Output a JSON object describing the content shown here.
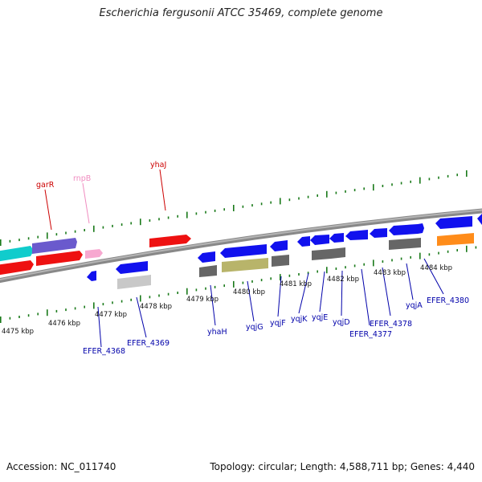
{
  "title": "Escherichia fergusonii ATCC 35469, complete genome",
  "accession": "Accession: NC_011740",
  "topology": "Topology: circular; Length: 4,588,711 bp; Genes: 4,440",
  "colors": {
    "red": "#ee1111",
    "blue": "#1111ee",
    "teal": "#11cccc",
    "purple": "#6a5acd",
    "pink": "#f7a8d0",
    "gray": "#666666",
    "lightgray": "#c8c8c8",
    "olive": "#b8b46a",
    "orange": "#ff8c1a",
    "backbone": "#888888",
    "tick_green": "#1a7a1a",
    "label_red": "#cc0000",
    "label_blue": "#0000aa",
    "label_pink": "#f08cc0"
  },
  "scale": {
    "ticks": [
      {
        "label": "4475 kbp"
      },
      {
        "label": "4476 kbp"
      },
      {
        "label": "4477 kbp"
      },
      {
        "label": "4478 kbp"
      },
      {
        "label": "4479 kbp"
      },
      {
        "label": "4480 kbp"
      },
      {
        "label": "4481 kbp"
      },
      {
        "label": "4482 kbp"
      },
      {
        "label": "4483 kbp"
      },
      {
        "label": "4484 kbp"
      }
    ]
  },
  "top_labels": [
    {
      "text": "garR",
      "color": "label_red"
    },
    {
      "text": "rnpB",
      "color": "label_pink"
    },
    {
      "text": "yhaJ",
      "color": "label_red"
    }
  ],
  "bottom_labels": [
    {
      "text": "EFER_4368"
    },
    {
      "text": "EFER_4369"
    },
    {
      "text": "yhaH"
    },
    {
      "text": "yqjG"
    },
    {
      "text": "yqjF"
    },
    {
      "text": "yqjK"
    },
    {
      "text": "yqjE"
    },
    {
      "text": "yqjD"
    },
    {
      "text": "EFER_4377"
    },
    {
      "text": "EFER_4378"
    },
    {
      "text": "yqjA"
    },
    {
      "text": "EFER_4380"
    }
  ]
}
